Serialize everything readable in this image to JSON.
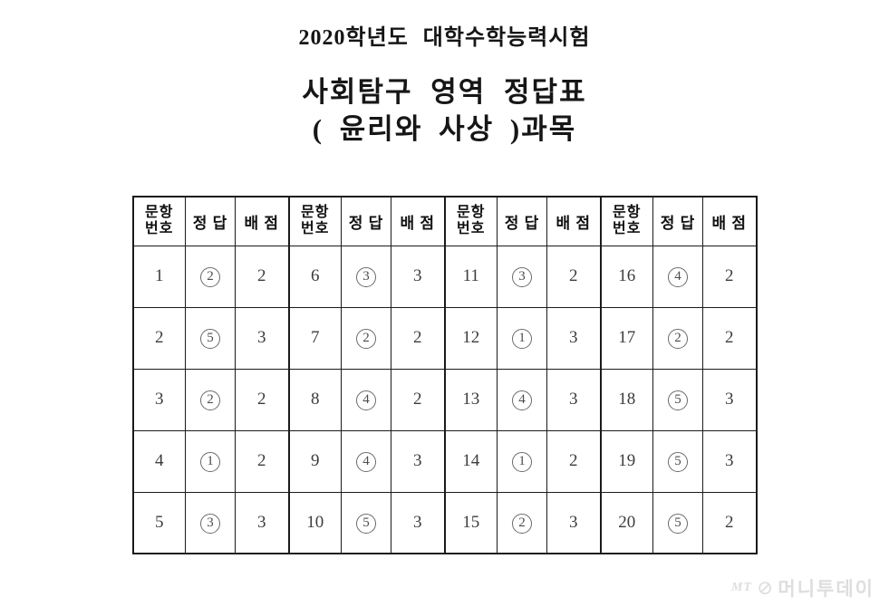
{
  "titles": {
    "line1": "2020학년도 대학수학능력시험",
    "line2": "사회탐구 영역 정답표",
    "line3": "( 윤리와 사상 )과목"
  },
  "table": {
    "header": {
      "no_line1": "문항",
      "no_line2": "번호",
      "answer": "정 답",
      "points": "배 점"
    },
    "questions": [
      {
        "no": "1",
        "answer": "2",
        "points": "2"
      },
      {
        "no": "2",
        "answer": "5",
        "points": "3"
      },
      {
        "no": "3",
        "answer": "2",
        "points": "2"
      },
      {
        "no": "4",
        "answer": "1",
        "points": "2"
      },
      {
        "no": "5",
        "answer": "3",
        "points": "3"
      },
      {
        "no": "6",
        "answer": "3",
        "points": "3"
      },
      {
        "no": "7",
        "answer": "2",
        "points": "2"
      },
      {
        "no": "8",
        "answer": "4",
        "points": "2"
      },
      {
        "no": "9",
        "answer": "4",
        "points": "3"
      },
      {
        "no": "10",
        "answer": "5",
        "points": "3"
      },
      {
        "no": "11",
        "answer": "3",
        "points": "2"
      },
      {
        "no": "12",
        "answer": "1",
        "points": "3"
      },
      {
        "no": "13",
        "answer": "4",
        "points": "3"
      },
      {
        "no": "14",
        "answer": "1",
        "points": "2"
      },
      {
        "no": "15",
        "answer": "2",
        "points": "3"
      },
      {
        "no": "16",
        "answer": "4",
        "points": "2"
      },
      {
        "no": "17",
        "answer": "2",
        "points": "2"
      },
      {
        "no": "18",
        "answer": "5",
        "points": "3"
      },
      {
        "no": "19",
        "answer": "5",
        "points": "3"
      },
      {
        "no": "20",
        "answer": "5",
        "points": "2"
      }
    ]
  },
  "watermark": {
    "mt": "MT",
    "slash_icon": "⊘",
    "text": "머니투데이"
  },
  "colors": {
    "background": "#ffffff",
    "text": "#1b1b1b",
    "border": "#1b1b1b",
    "watermark": "#dedede"
  }
}
